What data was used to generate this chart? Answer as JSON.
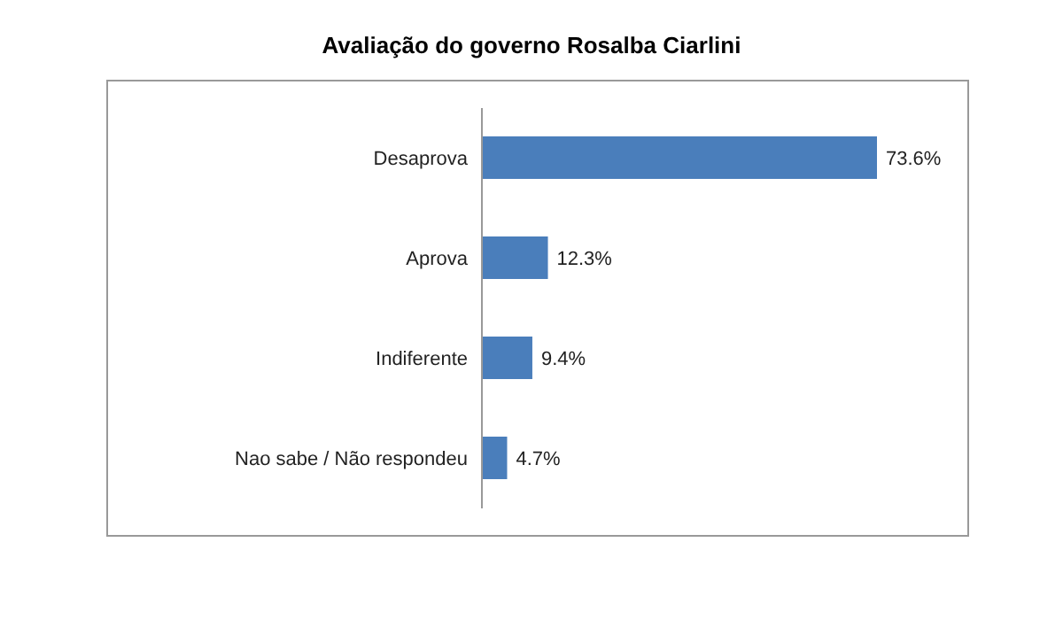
{
  "chart_data": {
    "type": "bar",
    "orientation": "horizontal",
    "title": "Avaliação do governo Rosalba Ciarlini",
    "categories": [
      "Desaprova",
      "Aprova",
      "Indiferente",
      "Nao sabe / Não respondeu"
    ],
    "values": [
      73.6,
      12.3,
      9.4,
      4.7
    ],
    "value_labels": [
      "73.6%",
      "12.3%",
      "9.4%",
      "4.7%"
    ],
    "color": "#4a7ebb",
    "grid": false,
    "legend": false
  }
}
